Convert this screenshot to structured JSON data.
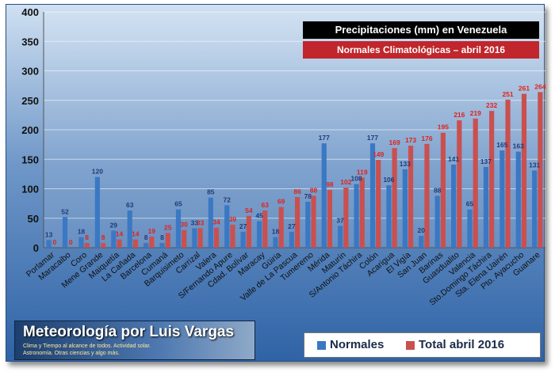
{
  "chart_data": {
    "type": "bar",
    "title": "Precipitaciones (mm) en Venezuela",
    "subtitle": "Normales Climatológicas – abril 2016",
    "xlabel": "",
    "ylabel": "",
    "ylim": [
      0,
      400
    ],
    "yticks": [
      0,
      50,
      100,
      150,
      200,
      250,
      300,
      350,
      400
    ],
    "grid": true,
    "legend_position": "bottom-right",
    "categories": [
      "Porlamar",
      "Maracaibo",
      "Coro",
      "Mene Grande",
      "Maiquetía",
      "La Cañada",
      "Barcelona",
      "Cumaná",
      "Barquisimeto",
      "Carrizal",
      "Valera",
      "S/Fernando Apure",
      "Cdad. Bolívar",
      "Maracay",
      "Güiria",
      "Valle de La Pascua",
      "Tumeremo",
      "Mérida",
      "Maturín",
      "S/Antonio Táchira",
      "Colón",
      "Acarigua",
      "El Vigía",
      "San Juan",
      "Barinas",
      "Guasdualito",
      "Valencia",
      "Sto.Domingo Táchira",
      "Sta. Elena Uairén",
      "Pto. Ayacucho",
      "Guanare"
    ],
    "series": [
      {
        "name": "Normales",
        "color": "#3a78c4",
        "label_color": "#1f3b7a",
        "values": [
          13,
          52,
          18,
          120,
          29,
          63,
          8,
          8,
          65,
          33,
          85,
          72,
          27,
          45,
          18,
          27,
          78,
          177,
          37,
          108,
          177,
          106,
          133,
          20,
          88,
          141,
          65,
          137,
          165,
          163,
          131
        ]
      },
      {
        "name": "Total abril 2016",
        "color": "#c9504f",
        "label_color": "#e0221d",
        "values": [
          0,
          0,
          8,
          8,
          14,
          14,
          19,
          25,
          30,
          33,
          34,
          39,
          54,
          63,
          69,
          86,
          88,
          98,
          102,
          119,
          149,
          169,
          173,
          176,
          195,
          216,
          219,
          232,
          251,
          261,
          264
        ]
      }
    ]
  },
  "branding": {
    "title": "Meteorología por Luis Vargas",
    "line1": "Clima y Tiempo al alcance de todos. Actividad solar.",
    "line2": "Astronomía. Otras ciencias y algo más."
  }
}
